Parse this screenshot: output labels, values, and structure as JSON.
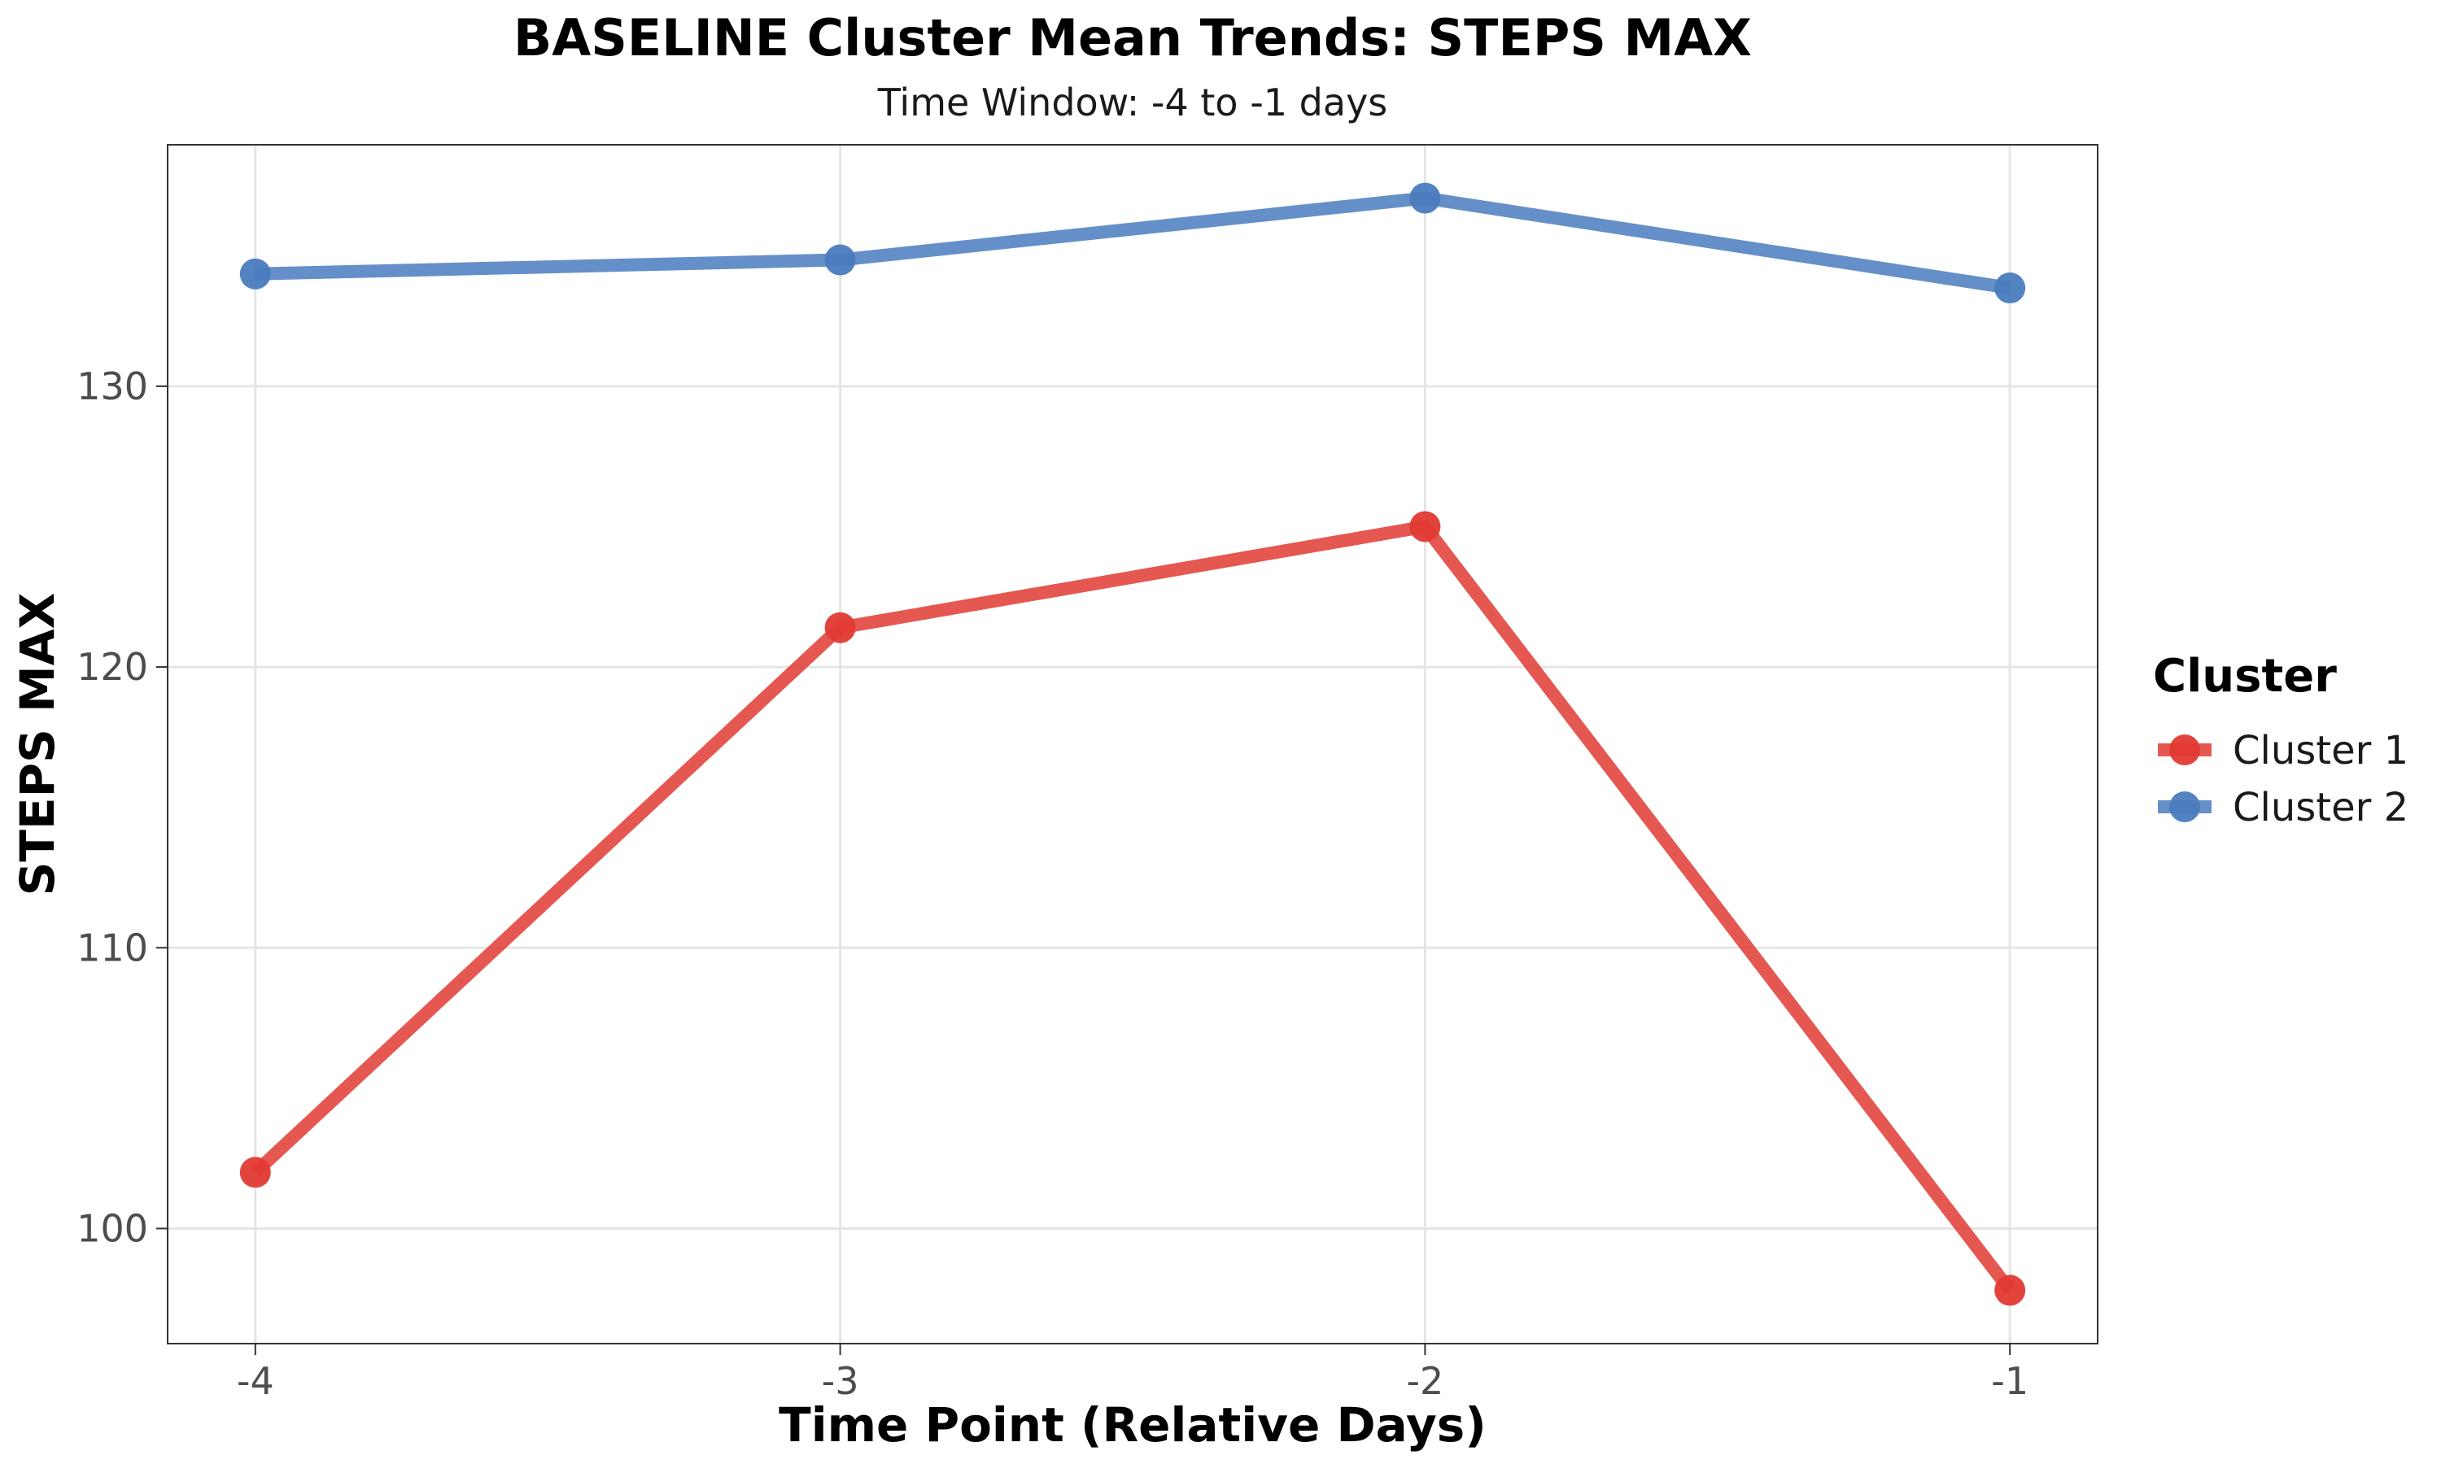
{
  "chart_data": {
    "type": "line",
    "title": "BASELINE Cluster Mean Trends: STEPS MAX",
    "subtitle": "Time Window: -4 to -1 days",
    "xlabel": "Time Point (Relative Days)",
    "ylabel": "STEPS MAX",
    "x": [
      -4,
      -3,
      -2,
      -1
    ],
    "x_tick_labels": [
      "-4",
      "-3",
      "-2",
      "-1"
    ],
    "xlim": [
      -4.15,
      -0.85
    ],
    "y_ticks": [
      100,
      110,
      120,
      130
    ],
    "y_tick_labels": [
      "100",
      "110",
      "120",
      "130"
    ],
    "ylim": [
      95.9,
      138.6
    ],
    "grid": true,
    "legend": {
      "title": "Cluster",
      "position": "right"
    },
    "series": [
      {
        "name": "Cluster 1",
        "color": "#E03A33",
        "values": [
          102.0,
          121.4,
          125.0,
          97.8
        ]
      },
      {
        "name": "Cluster 2",
        "color": "#4A7BBE",
        "values": [
          134.0,
          134.5,
          136.7,
          133.5
        ]
      }
    ]
  }
}
